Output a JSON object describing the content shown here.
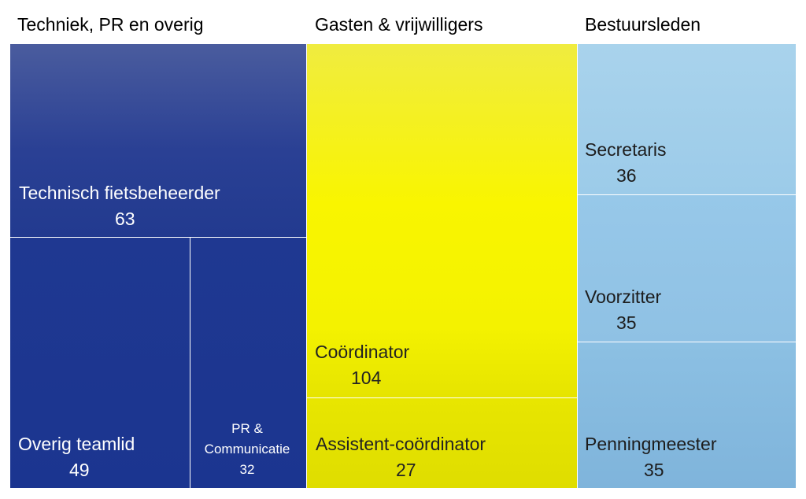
{
  "chart_data": {
    "type": "treemap",
    "groups": [
      {
        "name": "Techniek, PR en overig",
        "color": "#1f3a93",
        "items": [
          {
            "name": "Technisch fietsbeheerder",
            "value": 63
          },
          {
            "name": "Overig teamlid",
            "value": 49
          },
          {
            "name": "PR & Communicatie",
            "value": 32
          }
        ]
      },
      {
        "name": "Gasten & vrijwilligers",
        "color": "#f5f200",
        "items": [
          {
            "name": "Coördinator",
            "value": 104
          },
          {
            "name": "Assistent-coördinator",
            "value": 27
          }
        ]
      },
      {
        "name": "Bestuursleden",
        "color": "#9cc9e8",
        "items": [
          {
            "name": "Secretaris",
            "value": 36
          },
          {
            "name": "Voorzitter",
            "value": 35
          },
          {
            "name": "Penningmeester",
            "value": 35
          }
        ]
      }
    ]
  }
}
